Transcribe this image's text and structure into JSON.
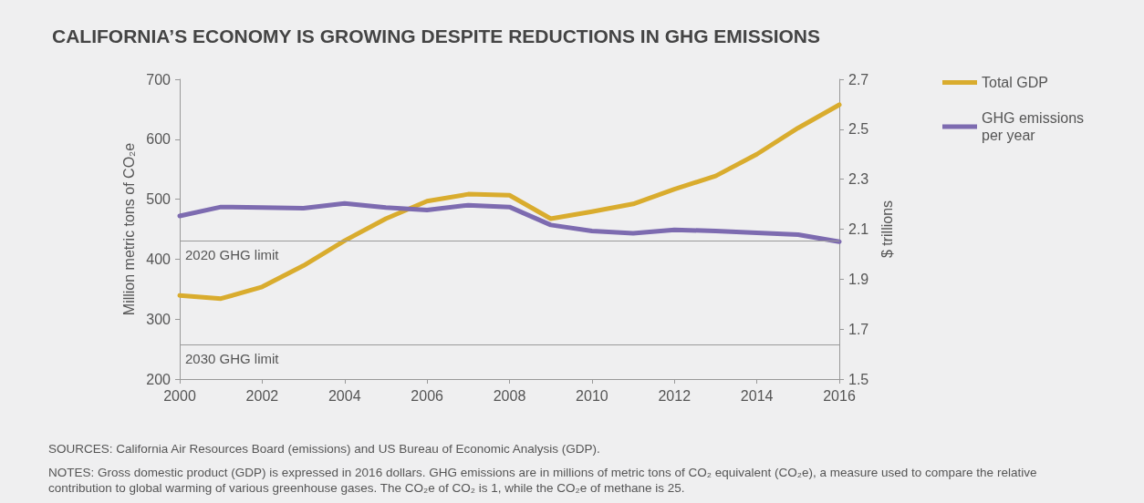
{
  "chart_data": {
    "type": "line",
    "title": "CALIFORNIA’S ECONOMY IS GROWING DESPITE REDUCTIONS IN GHG EMISSIONS",
    "ylabel": "Million metric tons of CO₂e",
    "y2label": "$ trillions",
    "x": [
      2000,
      2001,
      2002,
      2003,
      2004,
      2005,
      2006,
      2007,
      2008,
      2009,
      2010,
      2011,
      2012,
      2013,
      2014,
      2015,
      2016
    ],
    "series": [
      {
        "name": "Total GDP",
        "color": "#d9ac2e",
        "axis": "y2",
        "values": [
          1.835,
          1.822,
          1.869,
          1.954,
          2.054,
          2.142,
          2.212,
          2.24,
          2.236,
          2.142,
          2.17,
          2.201,
          2.26,
          2.313,
          2.4,
          2.505,
          2.598
        ]
      },
      {
        "name": "GHG emissions per year",
        "color": "#7d6bb0",
        "values": [
          472,
          487,
          486,
          485,
          493,
          486,
          482,
          490,
          487,
          457,
          447,
          443,
          449,
          447,
          444,
          441,
          429
        ]
      }
    ],
    "xlim": [
      2000,
      2016
    ],
    "xticks": [
      2000,
      2002,
      2004,
      2006,
      2008,
      2010,
      2012,
      2014,
      2016
    ],
    "ylim": [
      200,
      700
    ],
    "yticks": [
      200,
      300,
      400,
      500,
      600,
      700
    ],
    "y2lim": [
      1.5,
      2.7
    ],
    "y2ticks": [
      1.5,
      1.7,
      1.9,
      2.1,
      2.3,
      2.5,
      2.7
    ],
    "ref_lines": [
      {
        "axis": "y",
        "value": 431,
        "label": "2020 GHG limit",
        "color": "#9a9a9a"
      },
      {
        "axis": "y",
        "value": 258,
        "label": "2030 GHG limit",
        "color": "#9a9a9a"
      }
    ],
    "annotations": [
      "SOURCES: California Air Resources Board (emissions) and US Bureau of Economic Analysis (GDP).",
      "NOTES: Gross domestic product (GDP) is expressed in 2016 dollars. GHG emissions are in millions of metric tons of CO₂ equivalent (CO₂e), a measure used to compare the relative contribution to global warming of various greenhouse gases. The CO₂e of CO₂ is 1, while the CO₂e of methane is 25."
    ],
    "legend": "top right",
    "grid": false,
    "marker": "none",
    "line_style": "solid"
  }
}
